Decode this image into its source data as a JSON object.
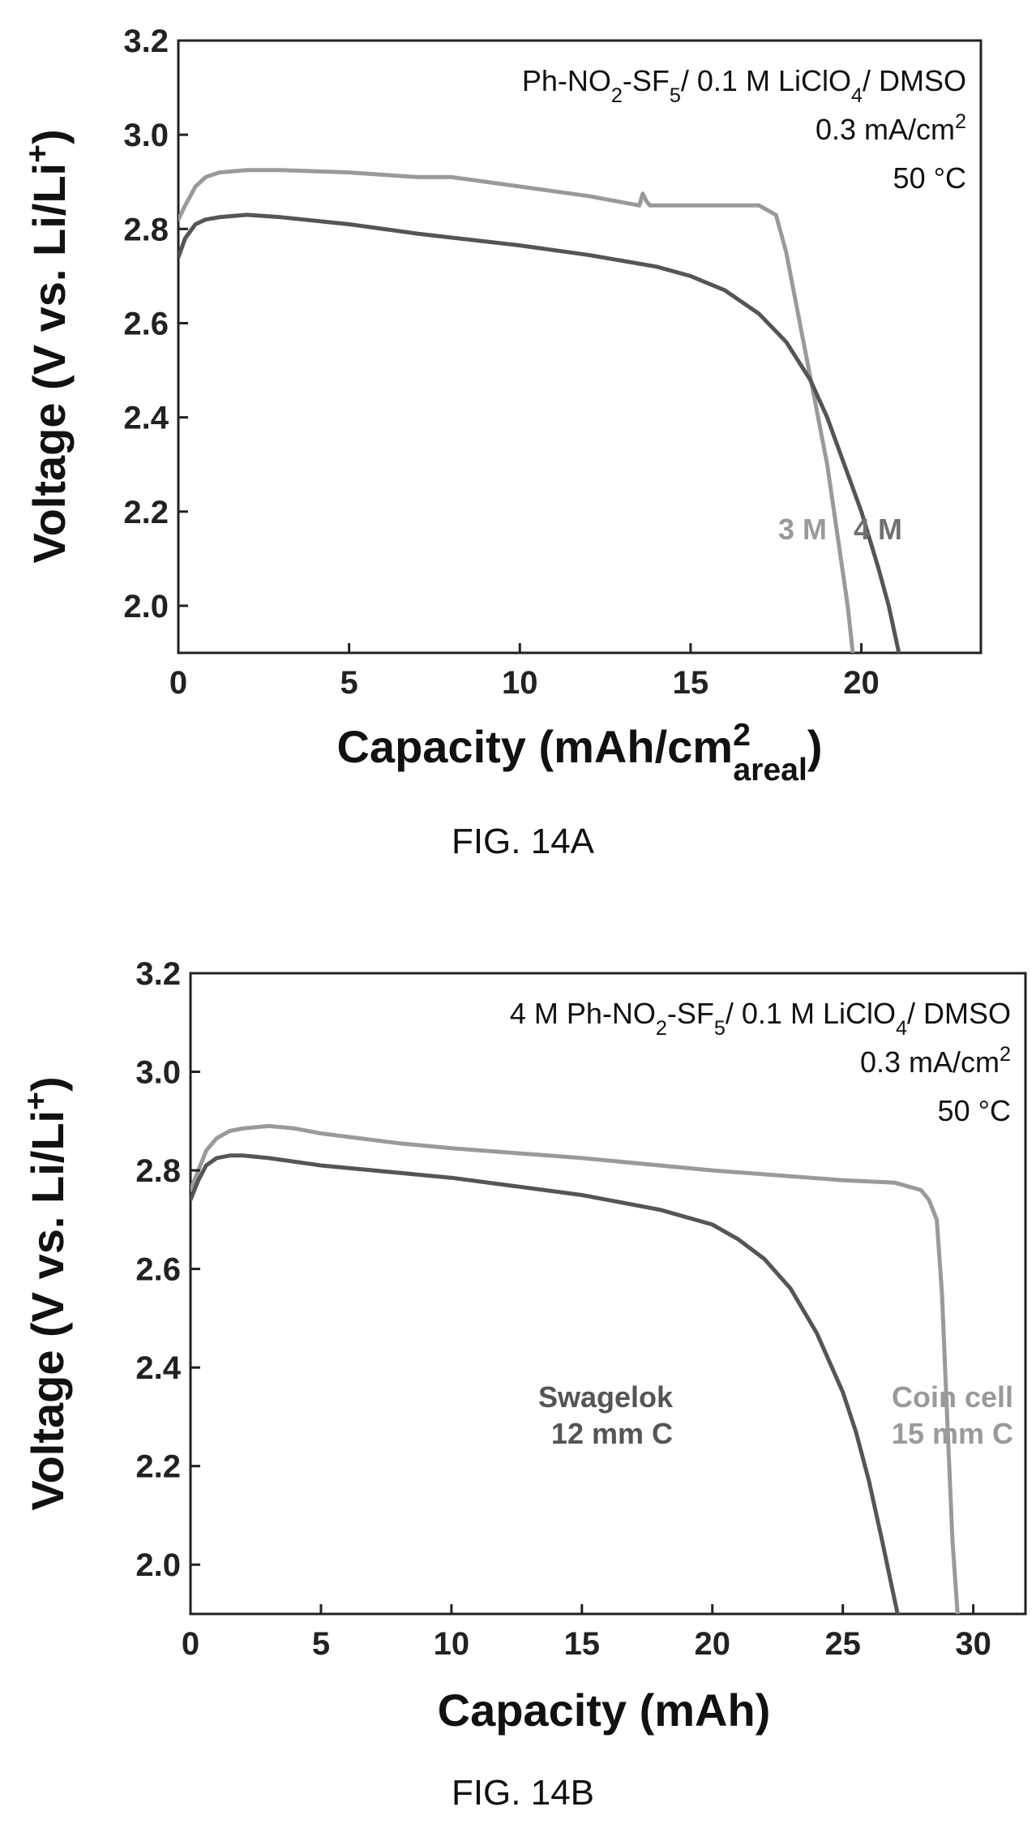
{
  "chart_data": [
    {
      "type": "line",
      "figure_label": "FIG. 14A",
      "title": "",
      "xlabel": "Capacity (mAh/cm",
      "xlabel_sup": "2",
      "xlabel_sub": "areal",
      "xlabel_close": ")",
      "ylabel": "Voltage (V vs. Li/Li",
      "ylabel_sup": "+",
      "ylabel_close": ")",
      "xlim": [
        0,
        23.5
      ],
      "ylim": [
        1.9,
        3.2
      ],
      "xticks": [
        0,
        5,
        10,
        15,
        20
      ],
      "yticks": [
        2.0,
        2.2,
        2.4,
        2.6,
        2.8,
        3.0,
        3.2
      ],
      "ytick_labels": [
        "2.0",
        "2.2",
        "2.4",
        "2.6",
        "2.8",
        "3.0",
        "3.2"
      ],
      "annotations": [
        {
          "parts": [
            [
              "Ph-NO",
              ""
            ],
            [
              "2",
              "sub"
            ],
            [
              "-SF",
              ""
            ],
            [
              "5",
              "sub"
            ],
            [
              "/ 0.1 M LiClO",
              ""
            ],
            [
              "4",
              "sub"
            ],
            [
              "/ DMSO",
              ""
            ]
          ]
        },
        {
          "parts": [
            [
              "0.3 mA/cm",
              ""
            ],
            [
              "2",
              "sup"
            ]
          ]
        },
        {
          "parts": [
            [
              "50 °C",
              ""
            ]
          ]
        }
      ],
      "series": [
        {
          "name": "3 M",
          "color": "#9a9a9a",
          "x": [
            0,
            0.2,
            0.5,
            0.8,
            1.2,
            2,
            3,
            5,
            7,
            8,
            10,
            12,
            13.5,
            13.6,
            13.7,
            13.8,
            14,
            15,
            16,
            17,
            17.5,
            17.8,
            18.2,
            18.6,
            19.0,
            19.3,
            19.6,
            19.75
          ],
          "y": [
            2.82,
            2.85,
            2.89,
            2.91,
            2.92,
            2.925,
            2.925,
            2.92,
            2.91,
            2.91,
            2.89,
            2.87,
            2.85,
            2.875,
            2.86,
            2.85,
            2.85,
            2.85,
            2.85,
            2.85,
            2.83,
            2.75,
            2.6,
            2.45,
            2.3,
            2.15,
            2.0,
            1.9
          ]
        },
        {
          "name": "4 M",
          "color": "#555555",
          "x": [
            0,
            0.2,
            0.5,
            0.8,
            1.2,
            2,
            3,
            5,
            7,
            10,
            12,
            14,
            15,
            16,
            17,
            17.8,
            18.5,
            19,
            19.5,
            20,
            20.5,
            20.8,
            21.1
          ],
          "y": [
            2.74,
            2.78,
            2.81,
            2.82,
            2.825,
            2.83,
            2.825,
            2.81,
            2.79,
            2.765,
            2.745,
            2.72,
            2.7,
            2.67,
            2.62,
            2.56,
            2.48,
            2.4,
            2.3,
            2.2,
            2.08,
            2.0,
            1.9
          ]
        }
      ],
      "series_labels": [
        {
          "text": "3 M",
          "color": "#9a9a9a"
        },
        {
          "text": "4 M",
          "color": "#707070"
        }
      ]
    },
    {
      "type": "line",
      "figure_label": "FIG. 14B",
      "title": "",
      "xlabel": "Capacity (mAh)",
      "ylabel": "Voltage (V vs. Li/Li",
      "ylabel_sup": "+",
      "ylabel_close": ")",
      "xlim": [
        0,
        32
      ],
      "ylim": [
        1.9,
        3.2
      ],
      "xticks": [
        0,
        5,
        10,
        15,
        20,
        25,
        30
      ],
      "yticks": [
        2.0,
        2.2,
        2.4,
        2.6,
        2.8,
        3.0,
        3.2
      ],
      "ytick_labels": [
        "2.0",
        "2.2",
        "2.4",
        "2.6",
        "2.8",
        "3.0",
        "3.2"
      ],
      "annotations": [
        {
          "parts": [
            [
              "4 M Ph-NO",
              ""
            ],
            [
              "2",
              "sub"
            ],
            [
              "-SF",
              ""
            ],
            [
              "5",
              "sub"
            ],
            [
              "/ 0.1 M LiClO",
              ""
            ],
            [
              "4",
              "sub"
            ],
            [
              "/ DMSO",
              ""
            ]
          ]
        },
        {
          "parts": [
            [
              "0.3 mA/cm",
              ""
            ],
            [
              "2",
              "sup"
            ]
          ]
        },
        {
          "parts": [
            [
              "50 °C",
              ""
            ]
          ]
        }
      ],
      "series": [
        {
          "name": "Coin cell 15 mm C",
          "color": "#9a9a9a",
          "x": [
            0,
            0.3,
            0.6,
            1,
            1.5,
            2,
            3,
            4,
            5,
            8,
            10,
            15,
            20,
            25,
            27,
            28,
            28.3,
            28.6,
            28.8,
            29.0,
            29.2,
            29.4
          ],
          "y": [
            2.76,
            2.8,
            2.84,
            2.865,
            2.88,
            2.885,
            2.89,
            2.885,
            2.875,
            2.855,
            2.845,
            2.825,
            2.8,
            2.78,
            2.775,
            2.76,
            2.74,
            2.7,
            2.55,
            2.3,
            2.05,
            1.9
          ]
        },
        {
          "name": "Swagelok 12 mm C",
          "color": "#555555",
          "x": [
            0,
            0.3,
            0.6,
            1,
            1.5,
            2,
            3,
            5,
            10,
            15,
            18,
            20,
            21,
            22,
            23,
            24,
            25,
            25.5,
            26,
            26.5,
            26.9,
            27.1
          ],
          "y": [
            2.74,
            2.78,
            2.81,
            2.825,
            2.83,
            2.83,
            2.825,
            2.81,
            2.785,
            2.75,
            2.72,
            2.69,
            2.66,
            2.62,
            2.56,
            2.47,
            2.35,
            2.27,
            2.17,
            2.05,
            1.95,
            1.9
          ]
        }
      ],
      "series_labels": [
        {
          "line1": "Swagelok",
          "line2": "12 mm C",
          "color": "#555555"
        },
        {
          "line1": "Coin cell",
          "line2": "15 mm C",
          "color": "#9a9a9a"
        }
      ]
    }
  ]
}
